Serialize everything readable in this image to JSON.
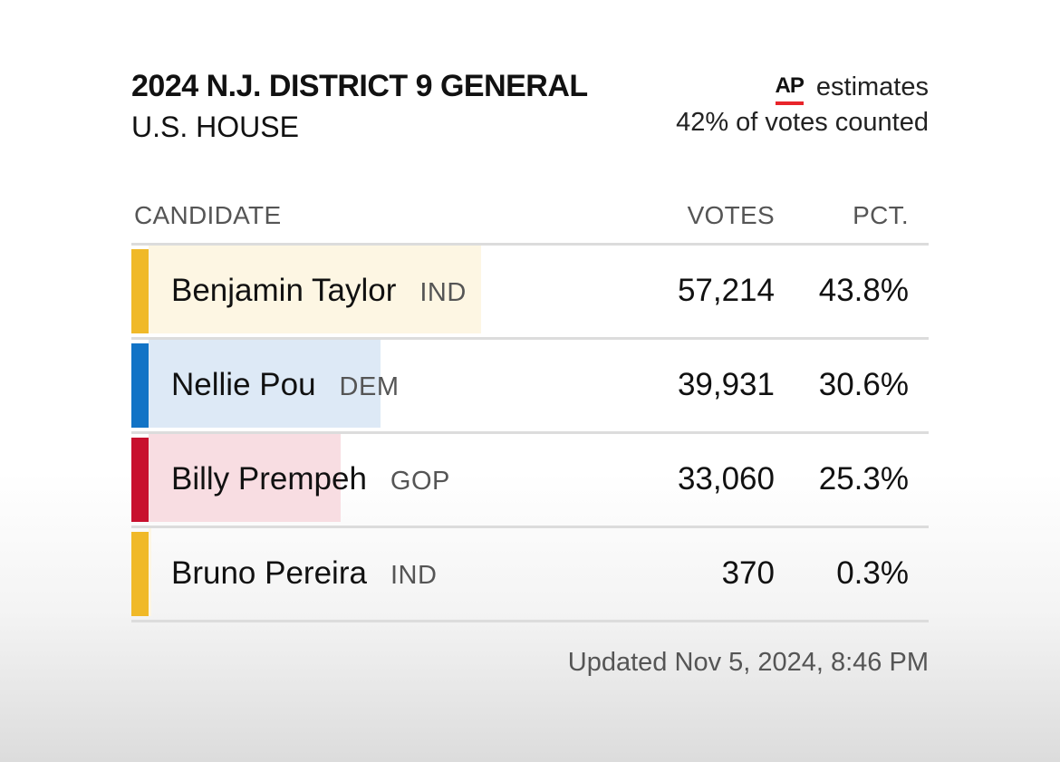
{
  "header": {
    "title": "2024 N.J. DISTRICT 9 GENERAL",
    "subtitle": "U.S. HOUSE",
    "ap_logo": "AP",
    "estimates_label": "estimates",
    "votes_counted": "42% of votes counted"
  },
  "columns": {
    "candidate": "CANDIDATE",
    "votes": "VOTES",
    "pct": "PCT."
  },
  "candidates": [
    {
      "name": "Benjamin Taylor",
      "party": "IND",
      "votes": "57,214",
      "pct": "43.8%",
      "share": 43.8,
      "accent_color": "#f0b928",
      "fill_color": "#fdf6e3"
    },
    {
      "name": "Nellie Pou",
      "party": "DEM",
      "votes": "39,931",
      "pct": "30.6%",
      "share": 30.6,
      "accent_color": "#1173c6",
      "fill_color": "#dde9f6"
    },
    {
      "name": "Billy Prempeh",
      "party": "GOP",
      "votes": "33,060",
      "pct": "25.3%",
      "share": 25.3,
      "accent_color": "#c8102e",
      "fill_color": "#f8dde2"
    },
    {
      "name": "Bruno Pereira",
      "party": "IND",
      "votes": "370",
      "pct": "0.3%",
      "share": 0.3,
      "accent_color": "#f0b928",
      "fill_color": "#fdf6e3"
    }
  ],
  "footer": {
    "updated": "Updated Nov 5, 2024, 8:46 PM"
  }
}
